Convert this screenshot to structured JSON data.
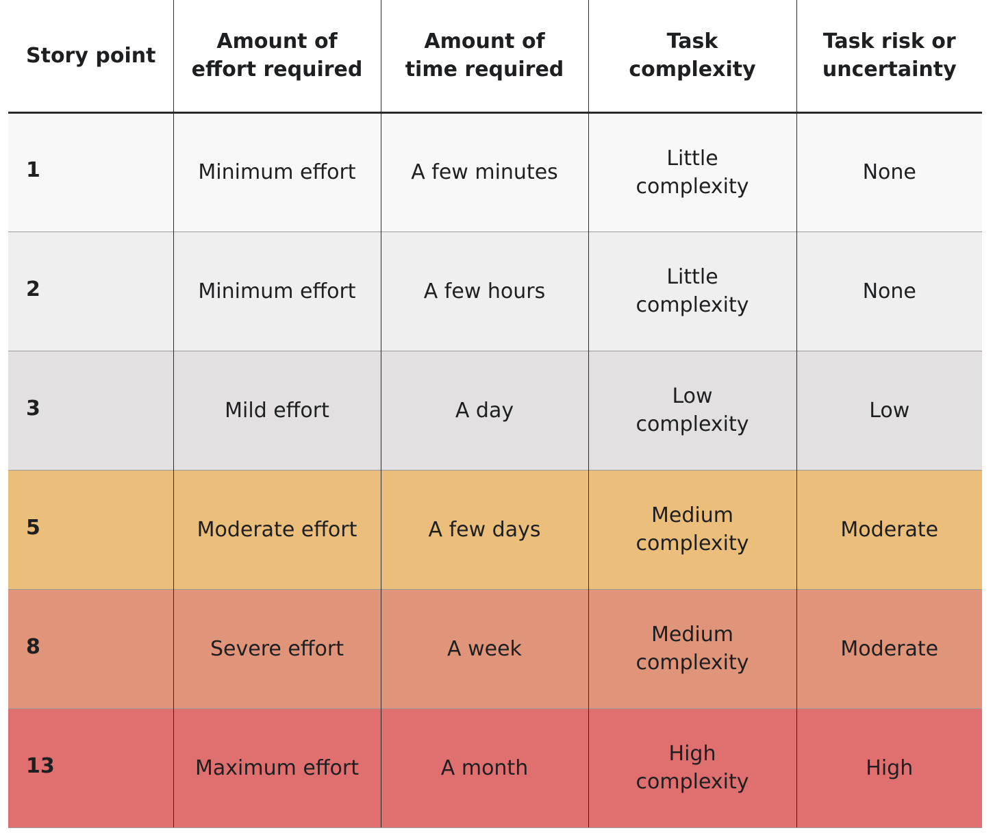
{
  "table": {
    "headers": [
      "Story point",
      "Amount of\neffort required",
      "Amount of\ntime required",
      "Task\ncomplexity",
      "Task risk or\nuncertainty"
    ],
    "rows": [
      {
        "point": "1",
        "effort": "Minimum effort",
        "time": "A few minutes",
        "complexity": "Little\ncomplexity",
        "risk": "None",
        "color": "#f9f8f8"
      },
      {
        "point": "2",
        "effort": "Minimum effort",
        "time": "A few hours",
        "complexity": "Little\ncomplexity",
        "risk": "None",
        "color": "#f0eff0"
      },
      {
        "point": "3",
        "effort": "Mild effort",
        "time": "A day",
        "complexity": "Low\ncomplexity",
        "risk": "Low",
        "color": "#e2e0e1"
      },
      {
        "point": "5",
        "effort": "Moderate effort",
        "time": "A few days",
        "complexity": "Medium\ncomplexity",
        "risk": "Moderate",
        "color": "#ebbe7b"
      },
      {
        "point": "8",
        "effort": "Severe effort",
        "time": "A week",
        "complexity": "Medium\ncomplexity",
        "risk": "Moderate",
        "color": "#e09479"
      },
      {
        "point": "13",
        "effort": "Maximum effort",
        "time": "A month",
        "complexity": "High\ncomplexity",
        "risk": "High",
        "color": "#e07070"
      }
    ]
  }
}
